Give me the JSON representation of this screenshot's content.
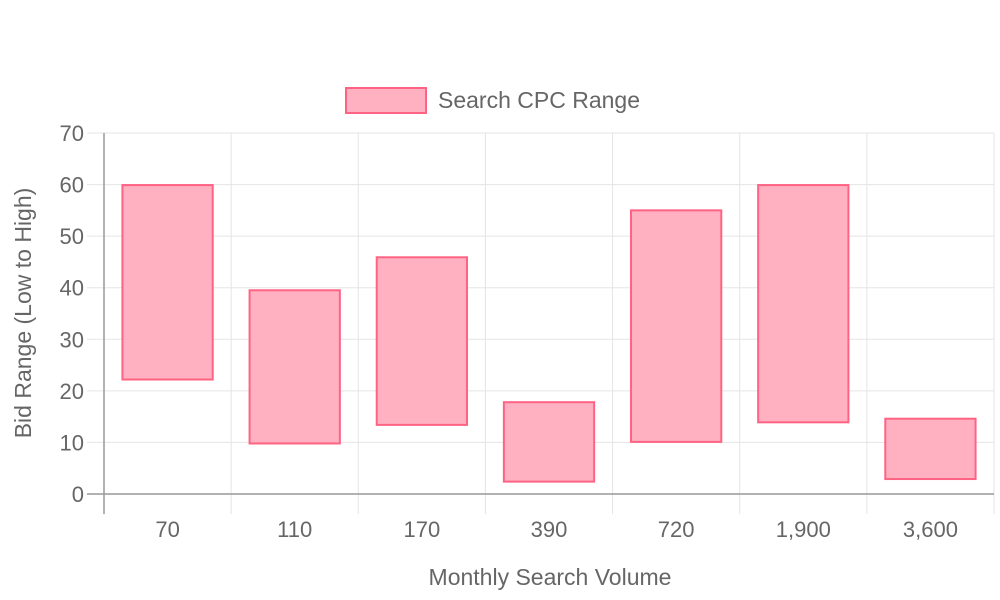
{
  "chart_data": {
    "type": "bar",
    "subtype": "floating-range",
    "categories": [
      "70",
      "110",
      "170",
      "390",
      "720",
      "1,900",
      "3,600"
    ],
    "series": [
      {
        "name": "Search CPC Range",
        "ranges": [
          [
            22.2,
            59.9
          ],
          [
            9.8,
            39.5
          ],
          [
            13.4,
            45.9
          ],
          [
            2.4,
            17.8
          ],
          [
            10.1,
            55.0
          ],
          [
            13.9,
            59.9
          ],
          [
            2.9,
            14.6
          ]
        ]
      }
    ],
    "xlabel": "Monthly Search Volume",
    "ylabel": "Bid Range (Low to High)",
    "ylim": [
      0,
      70
    ],
    "yticks": [
      0,
      10,
      20,
      30,
      40,
      50,
      60,
      70
    ],
    "grid": true,
    "legend_position": "top",
    "colors": {
      "fill": "#ffb1c1",
      "border": "#ff6384",
      "grid": "#e5e5e5",
      "axis": "#999999",
      "text": "#666666"
    }
  }
}
